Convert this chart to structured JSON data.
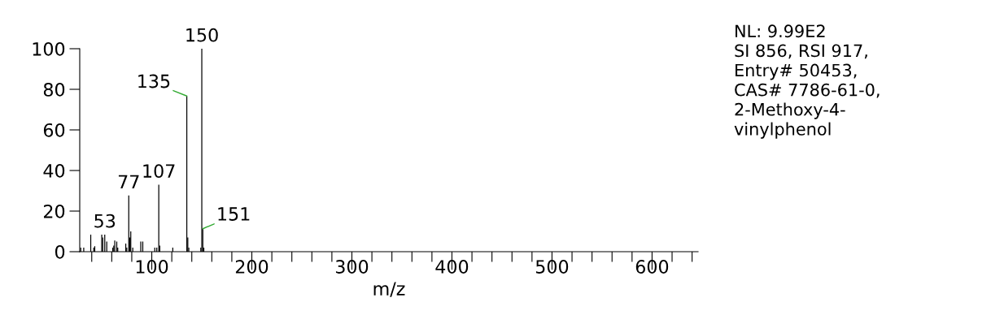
{
  "chart_data": {
    "type": "bar",
    "xlabel": "m/z",
    "x": [
      29,
      32,
      39,
      42,
      43,
      50,
      51,
      53,
      55,
      61,
      62,
      63,
      65,
      66,
      74,
      75,
      77,
      78,
      79,
      81,
      89,
      91,
      103,
      105,
      107,
      108,
      121,
      135,
      136,
      137,
      149,
      150,
      151,
      152
    ],
    "values": [
      2,
      2,
      8.4,
      2,
      2.7,
      8.4,
      7,
      8.4,
      5,
      2,
      3,
      5.5,
      5,
      2,
      4,
      2,
      27.7,
      7,
      10,
      2,
      5,
      5,
      2,
      2,
      33,
      3,
      2,
      76.7,
      7,
      2,
      2,
      100,
      11.3,
      2
    ],
    "color": "#000000",
    "xlim": [
      28,
      646
    ],
    "ylim": [
      0,
      100
    ],
    "xticks": [
      {
        "value": 40,
        "label": null
      },
      {
        "value": 60,
        "label": null
      },
      {
        "value": 80,
        "label": null
      },
      100,
      {
        "value": 120,
        "label": null
      },
      {
        "value": 140,
        "label": null
      },
      {
        "value": 160,
        "label": null
      },
      {
        "value": 180,
        "label": null
      },
      200,
      {
        "value": 220,
        "label": null
      },
      {
        "value": 240,
        "label": null
      },
      {
        "value": 260,
        "label": null
      },
      {
        "value": 280,
        "label": null
      },
      300,
      {
        "value": 320,
        "label": null
      },
      {
        "value": 340,
        "label": null
      },
      {
        "value": 360,
        "label": null
      },
      {
        "value": 380,
        "label": null
      },
      400,
      {
        "value": 420,
        "label": null
      },
      {
        "value": 440,
        "label": null
      },
      {
        "value": 460,
        "label": null
      },
      {
        "value": 480,
        "label": null
      },
      500,
      {
        "value": 520,
        "label": null
      },
      {
        "value": 540,
        "label": null
      },
      {
        "value": 560,
        "label": null
      },
      {
        "value": 580,
        "label": null
      },
      600,
      {
        "value": 620,
        "label": null
      },
      {
        "value": 640,
        "label": null
      }
    ],
    "yticks": [
      0,
      20,
      40,
      60,
      80,
      100
    ],
    "grid": false,
    "legend": false,
    "annotations": [
      {
        "text": "53",
        "x": 53,
        "y": 8.4
      },
      {
        "text": "77",
        "x": 77,
        "y": 27.7
      },
      {
        "text": "107",
        "x": 107,
        "y": 33
      },
      {
        "text": "135",
        "x": 135,
        "y": 76.7
      },
      {
        "text": "150",
        "x": 150,
        "y": 100
      },
      {
        "text": "151",
        "x": 151,
        "y": 11.3
      },
      "NL: 9.99E2\nSI 856, RSI 917,\nEntry# 50453,\nCAS# 7786-61-0,\n2-Methoxy-4-\nvinylphenol"
    ]
  }
}
